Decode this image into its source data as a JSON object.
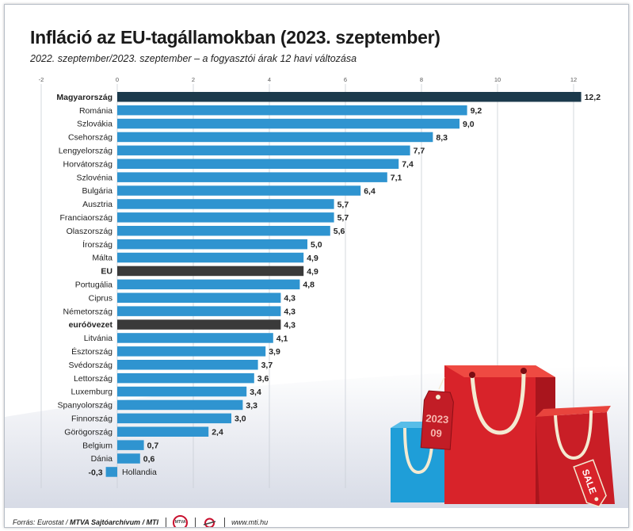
{
  "title": "Infláció az EU-tagállamokban (2023. szeptember)",
  "subtitle": "2022. szeptember/2023. szeptember – a fogyasztói árak 12 havi változása",
  "footer": {
    "source_label": "Forrás: Eurostat /",
    "credit": "MTVA Sajtóarchívum / MTI",
    "mtva_logo_text": "MTVA",
    "website": "www.mti.hu"
  },
  "decoration": {
    "tag_year": "2023",
    "tag_month": "09",
    "sale_label": "SALE"
  },
  "colors": {
    "bar": "#2f94d0",
    "highlight_hungary": "#1c3a4c",
    "aggregate": "#3a3a3a",
    "bag_red": "#d8232a",
    "bag_blue": "#1f9ed8"
  },
  "chart_data": {
    "type": "bar",
    "orientation": "horizontal",
    "title": "Infláció az EU-tagállamokban (2023. szeptember)",
    "subtitle": "2022. szeptember/2023. szeptember – a fogyasztói árak 12 havi változása",
    "xlim": [
      -2,
      12
    ],
    "xticks": [
      -2,
      0,
      2,
      4,
      6,
      8,
      10,
      12
    ],
    "grid": true,
    "categories": [
      "Magyarország",
      "Románia",
      "Szlovákia",
      "Csehország",
      "Lengyelország",
      "Horvátország",
      "Szlovénia",
      "Bulgária",
      "Ausztria",
      "Franciaország",
      "Olaszország",
      "Írország",
      "Málta",
      "EU",
      "Portugália",
      "Ciprus",
      "Németország",
      "euróövezet",
      "Litvánia",
      "Észtország",
      "Svédország",
      "Lettország",
      "Luxemburg",
      "Spanyolország",
      "Finnország",
      "Görögország",
      "Belgium",
      "Dánia",
      "Hollandia"
    ],
    "values": [
      12.2,
      9.2,
      9.0,
      8.3,
      7.7,
      7.4,
      7.1,
      6.4,
      5.7,
      5.7,
      5.6,
      5.0,
      4.9,
      4.9,
      4.8,
      4.3,
      4.3,
      4.3,
      4.1,
      3.9,
      3.7,
      3.6,
      3.4,
      3.3,
      3.0,
      2.4,
      0.7,
      0.6,
      -0.3
    ],
    "value_labels": [
      "12,2",
      "9,2",
      "9,0",
      "8,3",
      "7,7",
      "7,4",
      "7,1",
      "6,4",
      "5,7",
      "5,7",
      "5,6",
      "5,0",
      "4,9",
      "4,9",
      "4,8",
      "4,3",
      "4,3",
      "4,3",
      "4,1",
      "3,9",
      "3,7",
      "3,6",
      "3,4",
      "3,3",
      "3,0",
      "2,4",
      "0,7",
      "0,6",
      "-0,3"
    ],
    "highlight": "Magyarország",
    "aggregates": [
      "EU",
      "euróövezet"
    ]
  }
}
